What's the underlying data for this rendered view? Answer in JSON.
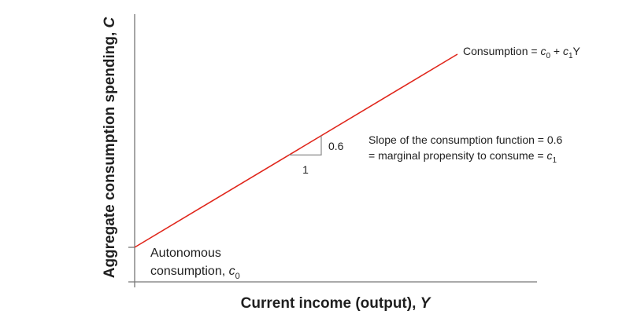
{
  "chart_data": {
    "type": "line",
    "xlabel": "Current income (output), ",
    "xlabel_var": "Y",
    "ylabel": "Aggregate consumption spending, ",
    "ylabel_var": "C",
    "series": [
      {
        "equation_prefix": "Consumption = ",
        "equation_c0": "c",
        "equation_c0_sub": "0",
        "equation_mid": " + ",
        "equation_c1": "c",
        "equation_c1_sub": "1",
        "equation_suffix": "Y",
        "intercept": 0,
        "slope": 0.6,
        "color": "#e0261b"
      }
    ],
    "slope_triangle": {
      "run_label": "1",
      "rise_label": "0.6"
    },
    "annotations": {
      "slope_line1": "Slope of the consumption function = 0.6",
      "slope_line2_prefix": "= marginal propensity to consume = ",
      "slope_line2_var": "c",
      "slope_line2_sub": "1",
      "autonomous_line1": "Autonomous",
      "autonomous_line2_prefix": "consumption, ",
      "autonomous_line2_var": "c",
      "autonomous_line2_sub": "0"
    },
    "grid": false
  },
  "colors": {
    "axis": "#777777",
    "line": "#e0261b",
    "text": "#1f1f1f"
  }
}
